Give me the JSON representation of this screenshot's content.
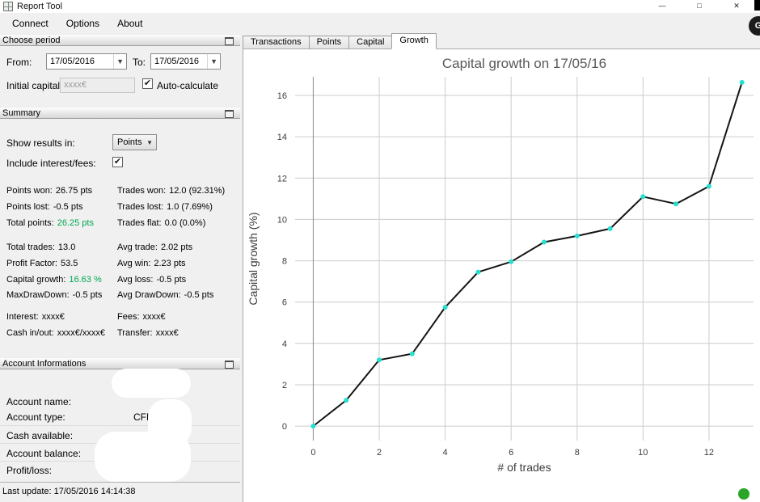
{
  "window": {
    "title": "Report Tool",
    "controls": {
      "minimize": "—",
      "maximize": "□",
      "close": "✕"
    },
    "corner_badge": "G"
  },
  "menu": {
    "items": [
      "Connect",
      "Options",
      "About"
    ]
  },
  "choose_period": {
    "title": "Choose period",
    "from_label": "From:",
    "from_value": "17/05/2016",
    "to_label": "To:",
    "to_value": "17/05/2016",
    "initial_capital_label": "Initial capital:",
    "initial_capital_value": "xxxx€",
    "auto_calculate_label": "Auto-calculate",
    "auto_calculate_checked": true
  },
  "summary": {
    "title": "Summary",
    "show_results_label": "Show results in:",
    "show_results_value": "Points",
    "include_interest_label": "Include interest/fees:",
    "include_interest_checked": true,
    "group1": [
      {
        "ll": "Points won:",
        "lv": "26.75 pts",
        "rl": "Trades won:",
        "rv": "12.0 (92.31%)"
      },
      {
        "ll": "Points lost:",
        "lv": "-0.5 pts",
        "rl": "Trades lost:",
        "rv": "1.0 (7.69%)"
      },
      {
        "ll": "Total points:",
        "lv": "26.25 pts",
        "rl": "Trades flat:",
        "rv": "0.0 (0.0%)"
      }
    ],
    "group2": [
      {
        "ll": "Total trades:",
        "lv": "13.0",
        "rl": "Avg trade:",
        "rv": "2.02 pts"
      },
      {
        "ll": "Profit Factor:",
        "lv": "53.5",
        "rl": "Avg win:",
        "rv": "2.23 pts"
      },
      {
        "ll": "Capital growth:",
        "lv": "16.63 %",
        "rl": "Avg loss:",
        "rv": "-0.5 pts"
      },
      {
        "ll": "MaxDrawDown:",
        "lv": "-0.5 pts",
        "rl": "Avg DrawDown:",
        "rv": "-0.5 pts"
      }
    ],
    "group3": [
      {
        "ll": "Interest:",
        "lv": "xxxx€",
        "rl": "Fees:",
        "rv": "xxxx€"
      },
      {
        "ll": "Cash in/out:",
        "lv": "xxxx€/xxxx€",
        "rl": "Transfer:",
        "rv": "xxxx€"
      }
    ]
  },
  "account": {
    "title": "Account Informations",
    "rows": [
      {
        "label": "Account name:",
        "value": ""
      },
      {
        "label": "Account type:",
        "value": "CFD"
      },
      {
        "label": "Cash available:",
        "value": ""
      },
      {
        "label": "Account balance:",
        "value": ""
      },
      {
        "label": "Profit/loss:",
        "value": ""
      }
    ]
  },
  "status": {
    "last_update": "Last update: 17/05/2016 14:14:38"
  },
  "tabs": [
    {
      "label": "Transactions",
      "selected": false
    },
    {
      "label": "Points",
      "selected": false
    },
    {
      "label": "Capital",
      "selected": false
    },
    {
      "label": "Growth",
      "selected": true
    }
  ],
  "colors": {
    "positive_green": "#00A651",
    "status_dot_green": "#2AA52A",
    "marker_cyan": "#26DFD0",
    "line_black": "#141414",
    "grid_gray": "#cccccc",
    "axis_gray": "#888888"
  },
  "chart_data": {
    "type": "line",
    "title": "Capital growth on 17/05/16",
    "xlabel": "# of trades",
    "ylabel": "Capital growth (%)",
    "x": [
      0,
      1,
      2,
      3,
      4,
      5,
      6,
      7,
      8,
      9,
      10,
      11,
      12,
      13
    ],
    "y": [
      0,
      1.25,
      3.2,
      3.5,
      5.75,
      7.45,
      7.95,
      8.9,
      9.2,
      9.55,
      11.1,
      10.75,
      11.6,
      16.63
    ],
    "xticks": [
      0,
      2,
      4,
      6,
      8,
      10,
      12
    ],
    "yticks": [
      0,
      2,
      4,
      6,
      8,
      10,
      12,
      14,
      16
    ],
    "xlim": [
      -0.55,
      13.35
    ],
    "ylim": [
      -0.7,
      16.9
    ],
    "grid": true,
    "line_color": "#141414",
    "marker_color": "#26DFD0",
    "grid_color": "#cccccc",
    "axis_color": "#888888"
  }
}
